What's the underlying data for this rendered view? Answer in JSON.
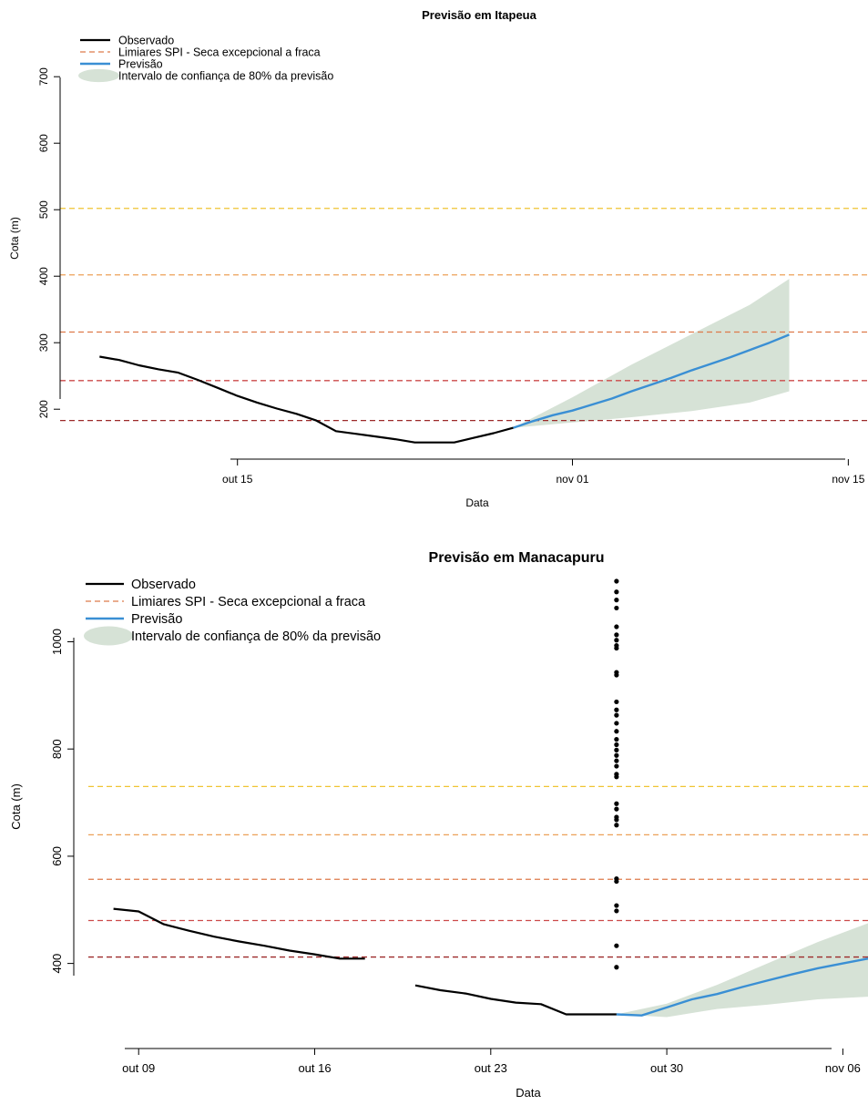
{
  "palette": {
    "observed": "#000000",
    "forecast": "#3a8fd4",
    "band": "#d6e2d6",
    "thresholds": [
      "#f0c432",
      "#eba058",
      "#dd7a4a",
      "#cc4a4a",
      "#9c2a2a"
    ]
  },
  "chart_data": [
    {
      "type": "line",
      "title": "Previsão em Itapeua",
      "xlabel": "Data",
      "ylabel": "Cota (m)",
      "x_ticks": [
        "out 15",
        "nov 01",
        "nov 15"
      ],
      "y_ticks": [
        200,
        300,
        400,
        500,
        600,
        700
      ],
      "xlim": [
        "2024-10-06",
        "2024-11-16"
      ],
      "ylim": [
        140,
        740
      ],
      "legend_position": "top-left",
      "legend": {
        "observed": "Observado",
        "thresholds": "Limiares SPI - Seca excepcional a fraca",
        "forecast": "Previsão",
        "band": "Intervalo de confiança de 80% da previsão"
      },
      "thresholds": [
        502,
        402,
        316,
        243,
        183
      ],
      "series": [
        {
          "name": "Observado",
          "points": [
            [
              "2024-10-08",
              279
            ],
            [
              "2024-10-09",
              274
            ],
            [
              "2024-10-10",
              266
            ],
            [
              "2024-10-11",
              260
            ],
            [
              "2024-10-12",
              255
            ],
            [
              "2024-10-13",
              244
            ],
            [
              "2024-10-14",
              232
            ],
            [
              "2024-10-15",
              220
            ],
            [
              "2024-10-16",
              210
            ],
            [
              "2024-10-17",
              201
            ],
            [
              "2024-10-18",
              193
            ],
            [
              "2024-10-19",
              183
            ],
            [
              "2024-10-20",
              167
            ],
            [
              "2024-10-21",
              163
            ],
            [
              "2024-10-22",
              159
            ],
            [
              "2024-10-23",
              155
            ],
            [
              "2024-10-24",
              150
            ],
            [
              "2024-10-25",
              150
            ],
            [
              "2024-10-26",
              150
            ],
            [
              "2024-10-27",
              157
            ],
            [
              "2024-10-28",
              164
            ],
            [
              "2024-10-29",
              172
            ]
          ]
        },
        {
          "name": "Previsão",
          "points": [
            [
              "2024-10-29",
              172
            ],
            [
              "2024-10-30",
              182
            ],
            [
              "2024-10-31",
              191
            ],
            [
              "2024-11-01",
              198
            ],
            [
              "2024-11-02",
              207
            ],
            [
              "2024-11-03",
              216
            ],
            [
              "2024-11-04",
              227
            ],
            [
              "2024-11-05",
              237
            ],
            [
              "2024-11-06",
              247
            ],
            [
              "2024-11-07",
              258
            ],
            [
              "2024-11-08",
              268
            ],
            [
              "2024-11-09",
              278
            ],
            [
              "2024-11-10",
              289
            ],
            [
              "2024-11-11",
              300
            ],
            [
              "2024-11-12",
              312
            ]
          ]
        }
      ],
      "band": {
        "name": "Intervalo de confiança de 80% da previsão",
        "x": [
          "2024-10-29",
          "2024-11-01",
          "2024-11-04",
          "2024-11-07",
          "2024-11-10",
          "2024-11-12"
        ],
        "lower": [
          172,
          180,
          188,
          197,
          210,
          227
        ],
        "upper": [
          172,
          218,
          267,
          312,
          357,
          396
        ]
      }
    },
    {
      "type": "line",
      "title": "Previsão em Manacapuru",
      "xlabel": "Data",
      "ylabel": "Cota (m)",
      "x_ticks": [
        "out 09",
        "out 16",
        "out 23",
        "out 30",
        "nov 06"
      ],
      "y_ticks": [
        400,
        600,
        800,
        1000
      ],
      "xlim": [
        "2024-10-07",
        "2024-11-07"
      ],
      "ylim": [
        260,
        1130
      ],
      "legend_position": "top-left",
      "legend": {
        "observed": "Observado",
        "thresholds": "Limiares SPI - Seca excepcional a fraca",
        "forecast": "Previsão",
        "band": "Intervalo de confiança de 80% da previsão"
      },
      "thresholds": [
        730,
        640,
        557,
        480,
        412
      ],
      "series": [
        {
          "name": "Observado",
          "segments": [
            [
              [
                "2024-10-08",
                502
              ],
              [
                "2024-10-09",
                497
              ],
              [
                "2024-10-10",
                473
              ],
              [
                "2024-10-11",
                461
              ],
              [
                "2024-10-12",
                450
              ],
              [
                "2024-10-13",
                441
              ],
              [
                "2024-10-14",
                433
              ],
              [
                "2024-10-15",
                424
              ],
              [
                "2024-10-16",
                417
              ],
              [
                "2024-10-17",
                409
              ],
              [
                "2024-10-18",
                409
              ]
            ],
            [
              [
                "2024-10-20",
                359
              ],
              [
                "2024-10-21",
                350
              ],
              [
                "2024-10-22",
                344
              ],
              [
                "2024-10-23",
                334
              ],
              [
                "2024-10-24",
                327
              ],
              [
                "2024-10-25",
                324
              ],
              [
                "2024-10-26",
                305
              ],
              [
                "2024-10-27",
                305
              ],
              [
                "2024-10-28",
                305
              ]
            ]
          ]
        },
        {
          "name": "Previsão",
          "points": [
            [
              "2024-10-28",
              305
            ],
            [
              "2024-10-29",
              303
            ],
            [
              "2024-10-30",
              318
            ],
            [
              "2024-10-31",
              333
            ],
            [
              "2024-11-01",
              343
            ],
            [
              "2024-11-02",
              356
            ],
            [
              "2024-11-03",
              368
            ],
            [
              "2024-11-04",
              380
            ],
            [
              "2024-11-05",
              391
            ],
            [
              "2024-11-06",
              400
            ],
            [
              "2024-11-07",
              409
            ]
          ]
        }
      ],
      "band": {
        "name": "Intervalo de confiança de 80% da previsão",
        "x": [
          "2024-10-28",
          "2024-10-30",
          "2024-11-01",
          "2024-11-03",
          "2024-11-05",
          "2024-11-07"
        ],
        "lower": [
          305,
          300,
          315,
          323,
          333,
          338
        ],
        "upper": [
          305,
          325,
          360,
          400,
          440,
          475
        ]
      },
      "dot_column": {
        "x": "2024-10-28",
        "values": [
          1113,
          1093,
          1078,
          1063,
          1028,
          1013,
          1003,
          993,
          988,
          943,
          938,
          888,
          873,
          863,
          848,
          833,
          818,
          808,
          798,
          788,
          778,
          768,
          753,
          748,
          698,
          688,
          673,
          668,
          658,
          558,
          553,
          508,
          498,
          433,
          393
        ]
      }
    }
  ]
}
